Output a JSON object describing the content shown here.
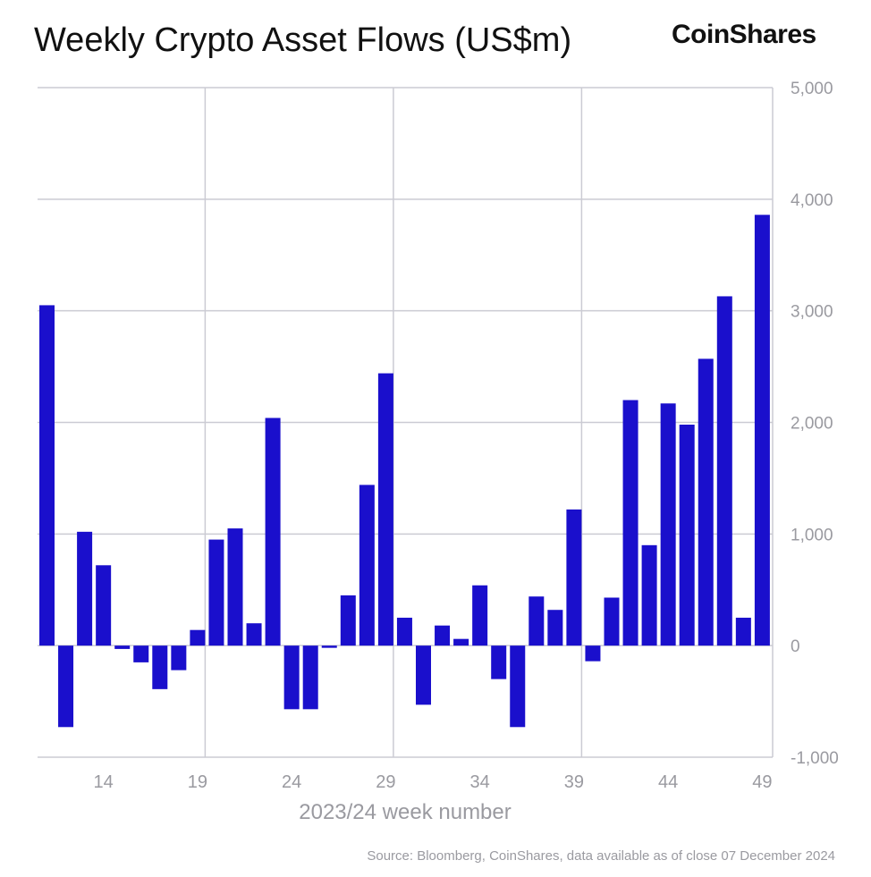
{
  "header": {
    "title": "Weekly Crypto Asset Flows (US$m)",
    "logo_text": "CoinShares"
  },
  "footer": {
    "source": "Source: Bloomberg, CoinShares, data available as of close 07 December 2024"
  },
  "colors": {
    "bar": "#1A0FCC",
    "grid": "#CBCBD3",
    "axis_text": "#9A9AA0",
    "title_text": "#111111"
  },
  "chart_data": {
    "type": "bar",
    "title": "Weekly Crypto Asset Flows (US$m)",
    "xlabel": "2023/24 week number",
    "ylabel": "",
    "ylim": [
      -1000,
      5000
    ],
    "yticks": [
      -1000,
      0,
      1000,
      2000,
      3000,
      4000,
      5000
    ],
    "ytick_labels": [
      "-1,000",
      "0",
      "1,000",
      "2,000",
      "3,000",
      "4,000",
      "5,000"
    ],
    "x_tick_labels": [
      "14",
      "19",
      "24",
      "29",
      "34",
      "39",
      "44",
      "49"
    ],
    "grid": true,
    "y_axis_side": "right",
    "categories": [
      11,
      12,
      13,
      14,
      15,
      16,
      17,
      18,
      19,
      20,
      21,
      22,
      23,
      24,
      25,
      26,
      27,
      28,
      29,
      30,
      31,
      32,
      33,
      34,
      35,
      36,
      37,
      38,
      39,
      40,
      41,
      42,
      43,
      44,
      45,
      46,
      47,
      48,
      49
    ],
    "values": [
      3050,
      -730,
      1020,
      720,
      -30,
      -150,
      -390,
      -220,
      140,
      950,
      1050,
      200,
      2040,
      -570,
      -570,
      -20,
      450,
      1440,
      2440,
      250,
      -530,
      180,
      60,
      540,
      -300,
      -730,
      440,
      320,
      1220,
      -140,
      430,
      2200,
      900,
      2170,
      1980,
      2570,
      3130,
      250,
      3860
    ]
  }
}
